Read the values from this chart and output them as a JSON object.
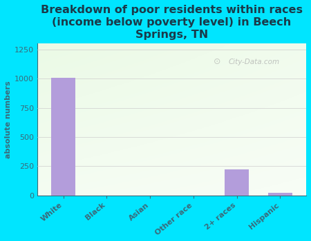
{
  "categories": [
    "White",
    "Black",
    "Asian",
    "Other race",
    "2+ races",
    "Hispanic"
  ],
  "values": [
    1005,
    0,
    0,
    0,
    220,
    20
  ],
  "bar_color": "#b39ddb",
  "background_color": "#00e5ff",
  "title": "Breakdown of poor residents within races\n(income below poverty level) in Beech\nSprings, TN",
  "ylabel": "absolute numbers",
  "ylim": [
    0,
    1300
  ],
  "yticks": [
    0,
    250,
    500,
    750,
    1000,
    1250
  ],
  "title_color": "#1a3a4a",
  "axis_color": "#3a6a7a",
  "watermark": "City-Data.com",
  "title_fontsize": 11.5,
  "ylabel_fontsize": 8,
  "tick_fontsize": 8
}
